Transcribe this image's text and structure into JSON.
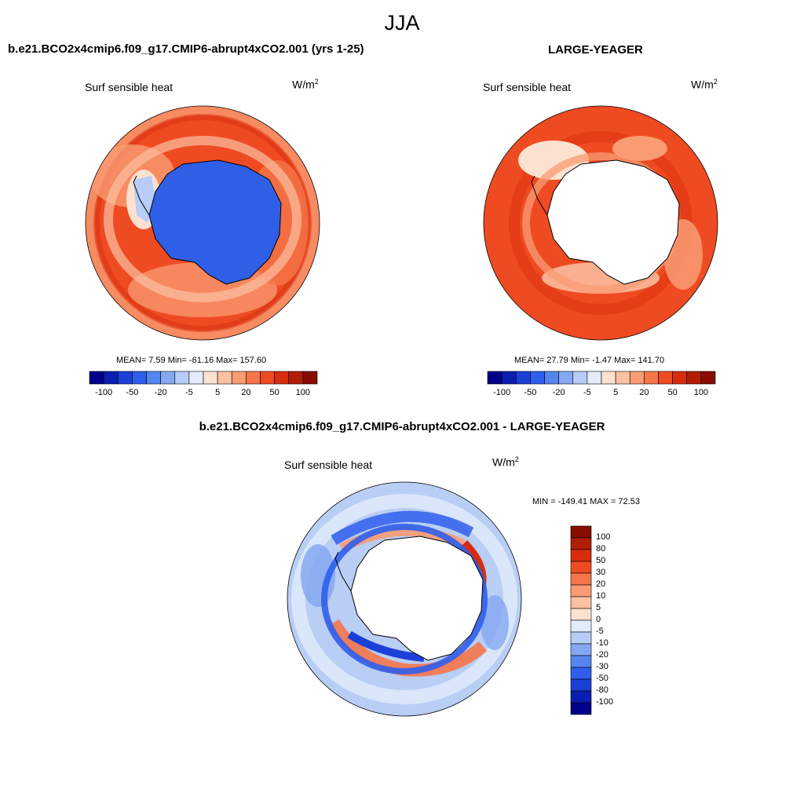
{
  "figure": {
    "season": "JJA",
    "panels": [
      {
        "id": "case",
        "title": "b.e21.BCO2x4cmip6.f09_g17.CMIP6-abrupt4xCO2.001 (yrs 1-25)",
        "variable": "Surf sensible heat",
        "units": "W/m",
        "units_exp": "2",
        "stats_text": "MEAN=   7.59  Min= -61.16  Max= 157.60",
        "mean": 7.59,
        "min": -61.16,
        "max": 157.6,
        "antarctica": "blue"
      },
      {
        "id": "reference",
        "title": "LARGE-YEAGER",
        "variable": "Surf sensible heat",
        "units": "W/m",
        "units_exp": "2",
        "stats_text": "MEAN=  27.79  Min=  -1.47  Max= 141.70",
        "mean": 27.79,
        "min": -1.47,
        "max": 141.7,
        "antarctica": "missing"
      },
      {
        "id": "difference",
        "title": "b.e21.BCO2x4cmip6.f09_g17.CMIP6-abrupt4xCO2.001 - LARGE-YEAGER",
        "variable": "Surf sensible heat",
        "units": "W/m",
        "units_exp": "2",
        "stats_text": "MIN = -149.41 MAX =  72.53",
        "min": -149.41,
        "max": 72.53,
        "antarctica": "missing"
      }
    ],
    "colorbar_top": {
      "colors": [
        "#00008b",
        "#0a1fb0",
        "#1c3fd8",
        "#2f5eec",
        "#5585ef",
        "#86a8f2",
        "#b7cdf7",
        "#e2ecfb",
        "#fde1d0",
        "#fbc1a3",
        "#f99b73",
        "#f5764a",
        "#ef4b22",
        "#d82d0d",
        "#b21d06",
        "#880d00"
      ],
      "tick_labels": [
        "-100",
        "-50",
        "-20",
        "-5",
        "5",
        "20",
        "50",
        "100"
      ]
    },
    "colorbar_diff": {
      "colors": [
        "#880d00",
        "#b21d06",
        "#d82d0d",
        "#ef4b22",
        "#f5764a",
        "#f99b73",
        "#fbc1a3",
        "#fde1d0",
        "#e2ecfb",
        "#b7cdf7",
        "#86a8f2",
        "#5585ef",
        "#2f5eec",
        "#1c3fd8",
        "#0a1fb0",
        "#00008b"
      ],
      "tick_labels": [
        "100",
        "80",
        "50",
        "30",
        "20",
        "10",
        "5",
        "0",
        "-5",
        "-10",
        "-20",
        "-30",
        "-50",
        "-80",
        "-100"
      ]
    },
    "palette": {
      "blue_land": "#2e5fe6",
      "ocean_red": "#ee4f24",
      "ocean_light": "#f99b73",
      "ocean_pale": "#fde1d0",
      "diff_pale_blue": "#b9cef5",
      "diff_blue": "#2f5eec",
      "diff_orange": "#f5764a"
    }
  }
}
